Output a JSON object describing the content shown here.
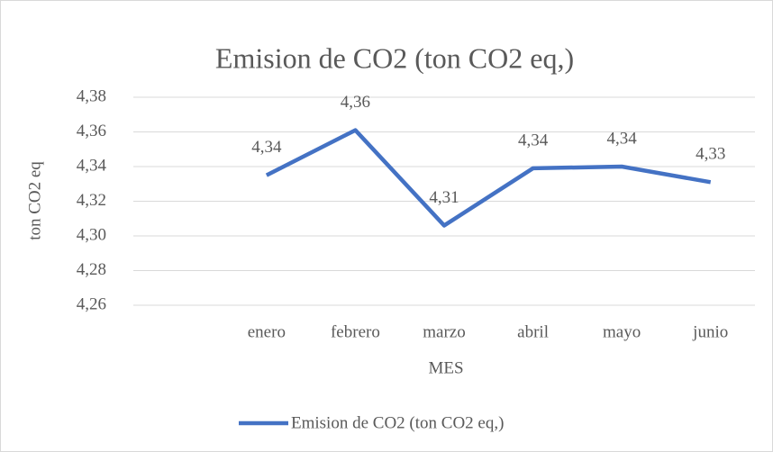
{
  "chart_data": {
    "type": "line",
    "title": "Emision de CO2 (ton CO2 eq,)",
    "x_label": "MES",
    "y_label": "ton CO2  eq",
    "categories": [
      null,
      "enero",
      "febrero",
      "marzo",
      "abril",
      "mayo",
      "junio"
    ],
    "series": [
      {
        "name": "Emision de CO2 (ton CO2 eq,)",
        "color": "#4472c4",
        "values": [
          null,
          4.335,
          4.361,
          4.306,
          4.339,
          4.34,
          4.331
        ],
        "value_labels": [
          null,
          "4,34",
          "4,36",
          "4,31",
          "4,34",
          "4,34",
          "4,33"
        ]
      }
    ],
    "ylim": [
      4.26,
      4.38
    ],
    "yticks": [
      {
        "value": 4.26,
        "label": "4,26"
      },
      {
        "value": 4.28,
        "label": "4,28"
      },
      {
        "value": 4.3,
        "label": "4,30"
      },
      {
        "value": 4.32,
        "label": "4,32"
      },
      {
        "value": 4.34,
        "label": "4,34"
      },
      {
        "value": 4.36,
        "label": "4,36"
      },
      {
        "value": 4.38,
        "label": "4,38"
      }
    ],
    "grid": true,
    "legend": "bottom"
  }
}
